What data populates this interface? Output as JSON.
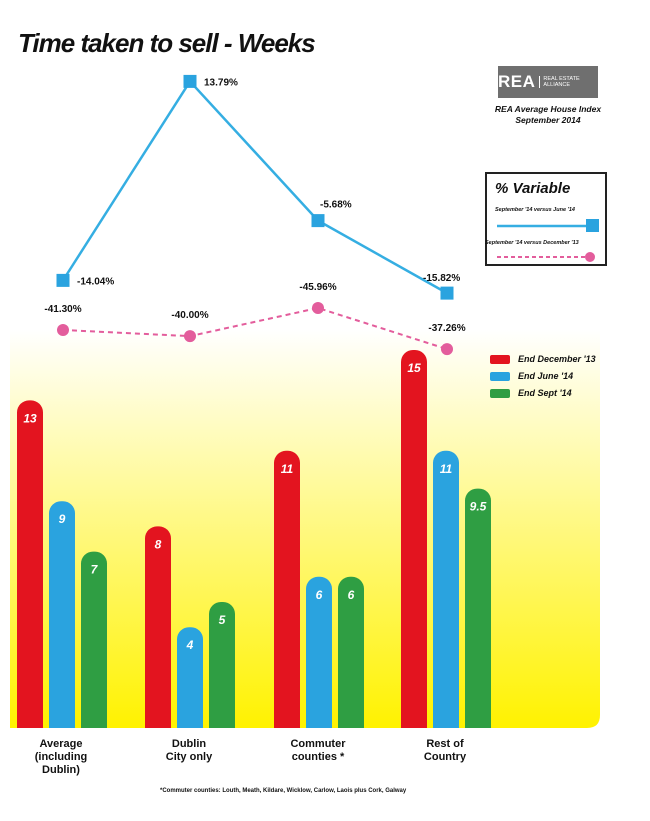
{
  "title": "Time taken to sell - Weeks",
  "logo": {
    "main": "REA",
    "sub": "REAL ESTATE ALLIANCE",
    "caption_line1": "REA Average House Index",
    "caption_line2": "September 2014"
  },
  "variable_legend": {
    "title": "% Variable",
    "line1_label": "September '14 versus June '14",
    "line2_label": "September '14 versus December '13"
  },
  "footnote": "*Commuter counties: Louth, Meath, Kildare, Wicklow, Carlow, Laois plus Cork, Galway",
  "colors": {
    "dec13": "#e3141f",
    "jun14": "#2aa3df",
    "sep14": "#2f9e43",
    "line_sep_jun": "#35aee2",
    "line_sep_dec": "#e35d9c",
    "bg_top": "#ffffff",
    "bg_bottom": "#fff200"
  },
  "chart_data": [
    {
      "type": "bar",
      "categories": [
        "Average\n(including\nDublin)",
        "Dublin\nCity only",
        "Commuter\ncounties *",
        "Rest of\nCountry"
      ],
      "series": [
        {
          "name": "End December '13",
          "values": [
            13,
            8,
            11,
            15
          ]
        },
        {
          "name": "End June '14",
          "values": [
            9,
            4,
            6,
            11
          ]
        },
        {
          "name": "End Sept '14",
          "values": [
            7,
            5,
            6,
            9.5
          ]
        }
      ],
      "value_labels": [
        [
          "13",
          "8",
          "11",
          "15"
        ],
        [
          "9",
          "4",
          "6",
          "11"
        ],
        [
          "7",
          "5",
          "6",
          "9.5"
        ]
      ],
      "ylim": [
        0,
        16.5
      ]
    },
    {
      "type": "line",
      "categories": [
        "Average\n(including\nDublin)",
        "Dublin\nCity only",
        "Commuter\ncounties *",
        "Rest of\nCountry"
      ],
      "series": [
        {
          "name": "September '14 versus June '14",
          "values": [
            -14.04,
            13.79,
            -5.68,
            -15.82
          ],
          "labels": [
            "-14.04%",
            "13.79%",
            "-5.68%",
            "-15.82%"
          ]
        },
        {
          "name": "September '14 versus December '13",
          "values": [
            -41.3,
            -40.0,
            -45.96,
            -37.26
          ],
          "labels": [
            "-41.30%",
            "-40.00%",
            "-45.96%",
            "-37.26%"
          ]
        }
      ]
    }
  ]
}
